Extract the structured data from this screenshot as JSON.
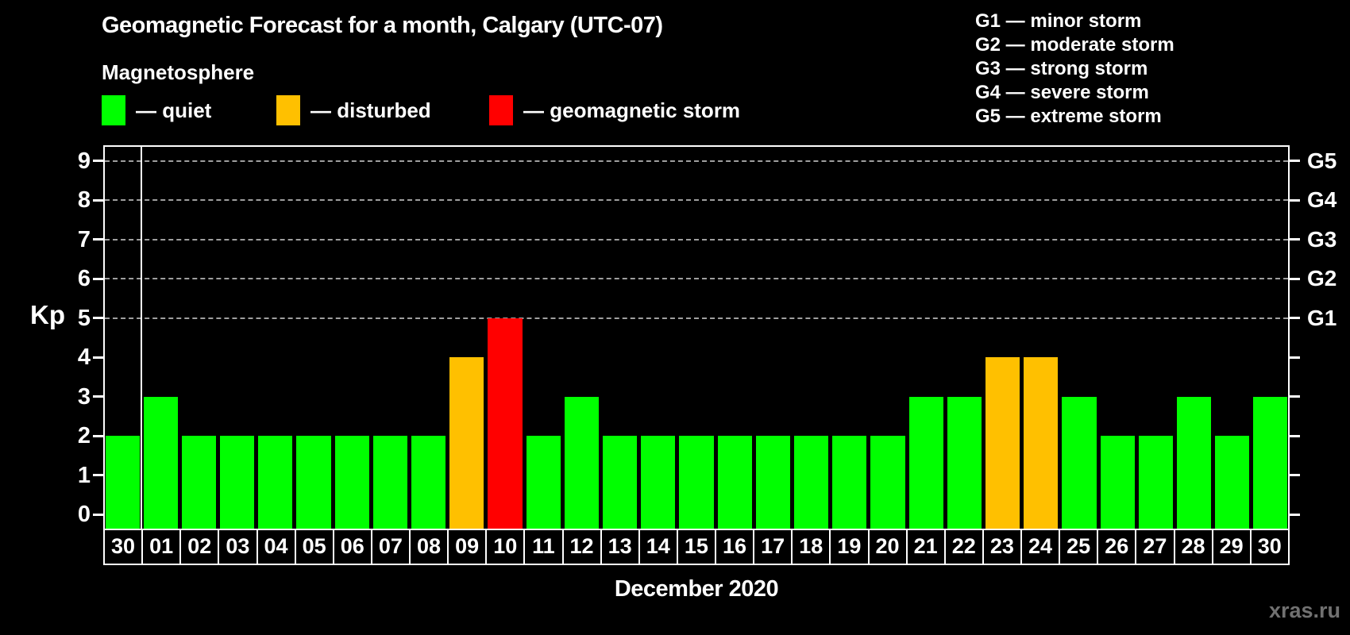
{
  "title": "Geomagnetic Forecast for a month, Calgary (UTC-07)",
  "subtitle": "Magnetosphere",
  "legend": {
    "quiet": "— quiet",
    "disturbed": "— disturbed",
    "storm": "— geomagnetic storm"
  },
  "g_scale_legend": [
    "G1 — minor storm",
    "G2 — moderate storm",
    "G3 — strong storm",
    "G4 — severe storm",
    "G5 — extreme storm"
  ],
  "watermark": "xras.ru",
  "colors": {
    "quiet": "#00ff00",
    "disturbed": "#ffc000",
    "storm": "#ff0000",
    "axis": "#ffffff",
    "grid": "#9f9f9f",
    "watermark": "#717171",
    "background": "#000000"
  },
  "chart_data": {
    "type": "bar",
    "title": "Geomagnetic Forecast for a month, Calgary (UTC-07)",
    "xlabel": "December 2020",
    "ylabel": "Kp",
    "ylim": [
      -0.4,
      9.4
    ],
    "yticks": [
      0,
      1,
      2,
      3,
      4,
      5,
      6,
      7,
      8,
      9
    ],
    "gridlines_at": [
      5,
      6,
      7,
      8,
      9
    ],
    "grid": "dashed horizontal lines at Kp 5-9 (G1-G5 storm levels)",
    "legend_position": "top",
    "right_axis": [
      {
        "kp": 5,
        "label": "G1"
      },
      {
        "kp": 6,
        "label": "G2"
      },
      {
        "kp": 7,
        "label": "G3"
      },
      {
        "kp": 8,
        "label": "G4"
      },
      {
        "kp": 9,
        "label": "G5"
      }
    ],
    "categories": [
      "30",
      "01",
      "02",
      "03",
      "04",
      "05",
      "06",
      "07",
      "08",
      "09",
      "10",
      "11",
      "12",
      "13",
      "14",
      "15",
      "16",
      "17",
      "18",
      "19",
      "20",
      "21",
      "22",
      "23",
      "24",
      "25",
      "26",
      "27",
      "28",
      "29",
      "30"
    ],
    "values": [
      2,
      3,
      2,
      2,
      2,
      2,
      2,
      2,
      2,
      4,
      5,
      2,
      3,
      2,
      2,
      2,
      2,
      2,
      2,
      2,
      2,
      3,
      3,
      4,
      4,
      3,
      2,
      2,
      3,
      2,
      3
    ],
    "statuses": [
      "quiet",
      "quiet",
      "quiet",
      "quiet",
      "quiet",
      "quiet",
      "quiet",
      "quiet",
      "quiet",
      "disturbed",
      "storm",
      "quiet",
      "quiet",
      "quiet",
      "quiet",
      "quiet",
      "quiet",
      "quiet",
      "quiet",
      "quiet",
      "quiet",
      "quiet",
      "quiet",
      "disturbed",
      "disturbed",
      "quiet",
      "quiet",
      "quiet",
      "quiet",
      "quiet",
      "quiet"
    ],
    "separator_after_index": 0
  }
}
